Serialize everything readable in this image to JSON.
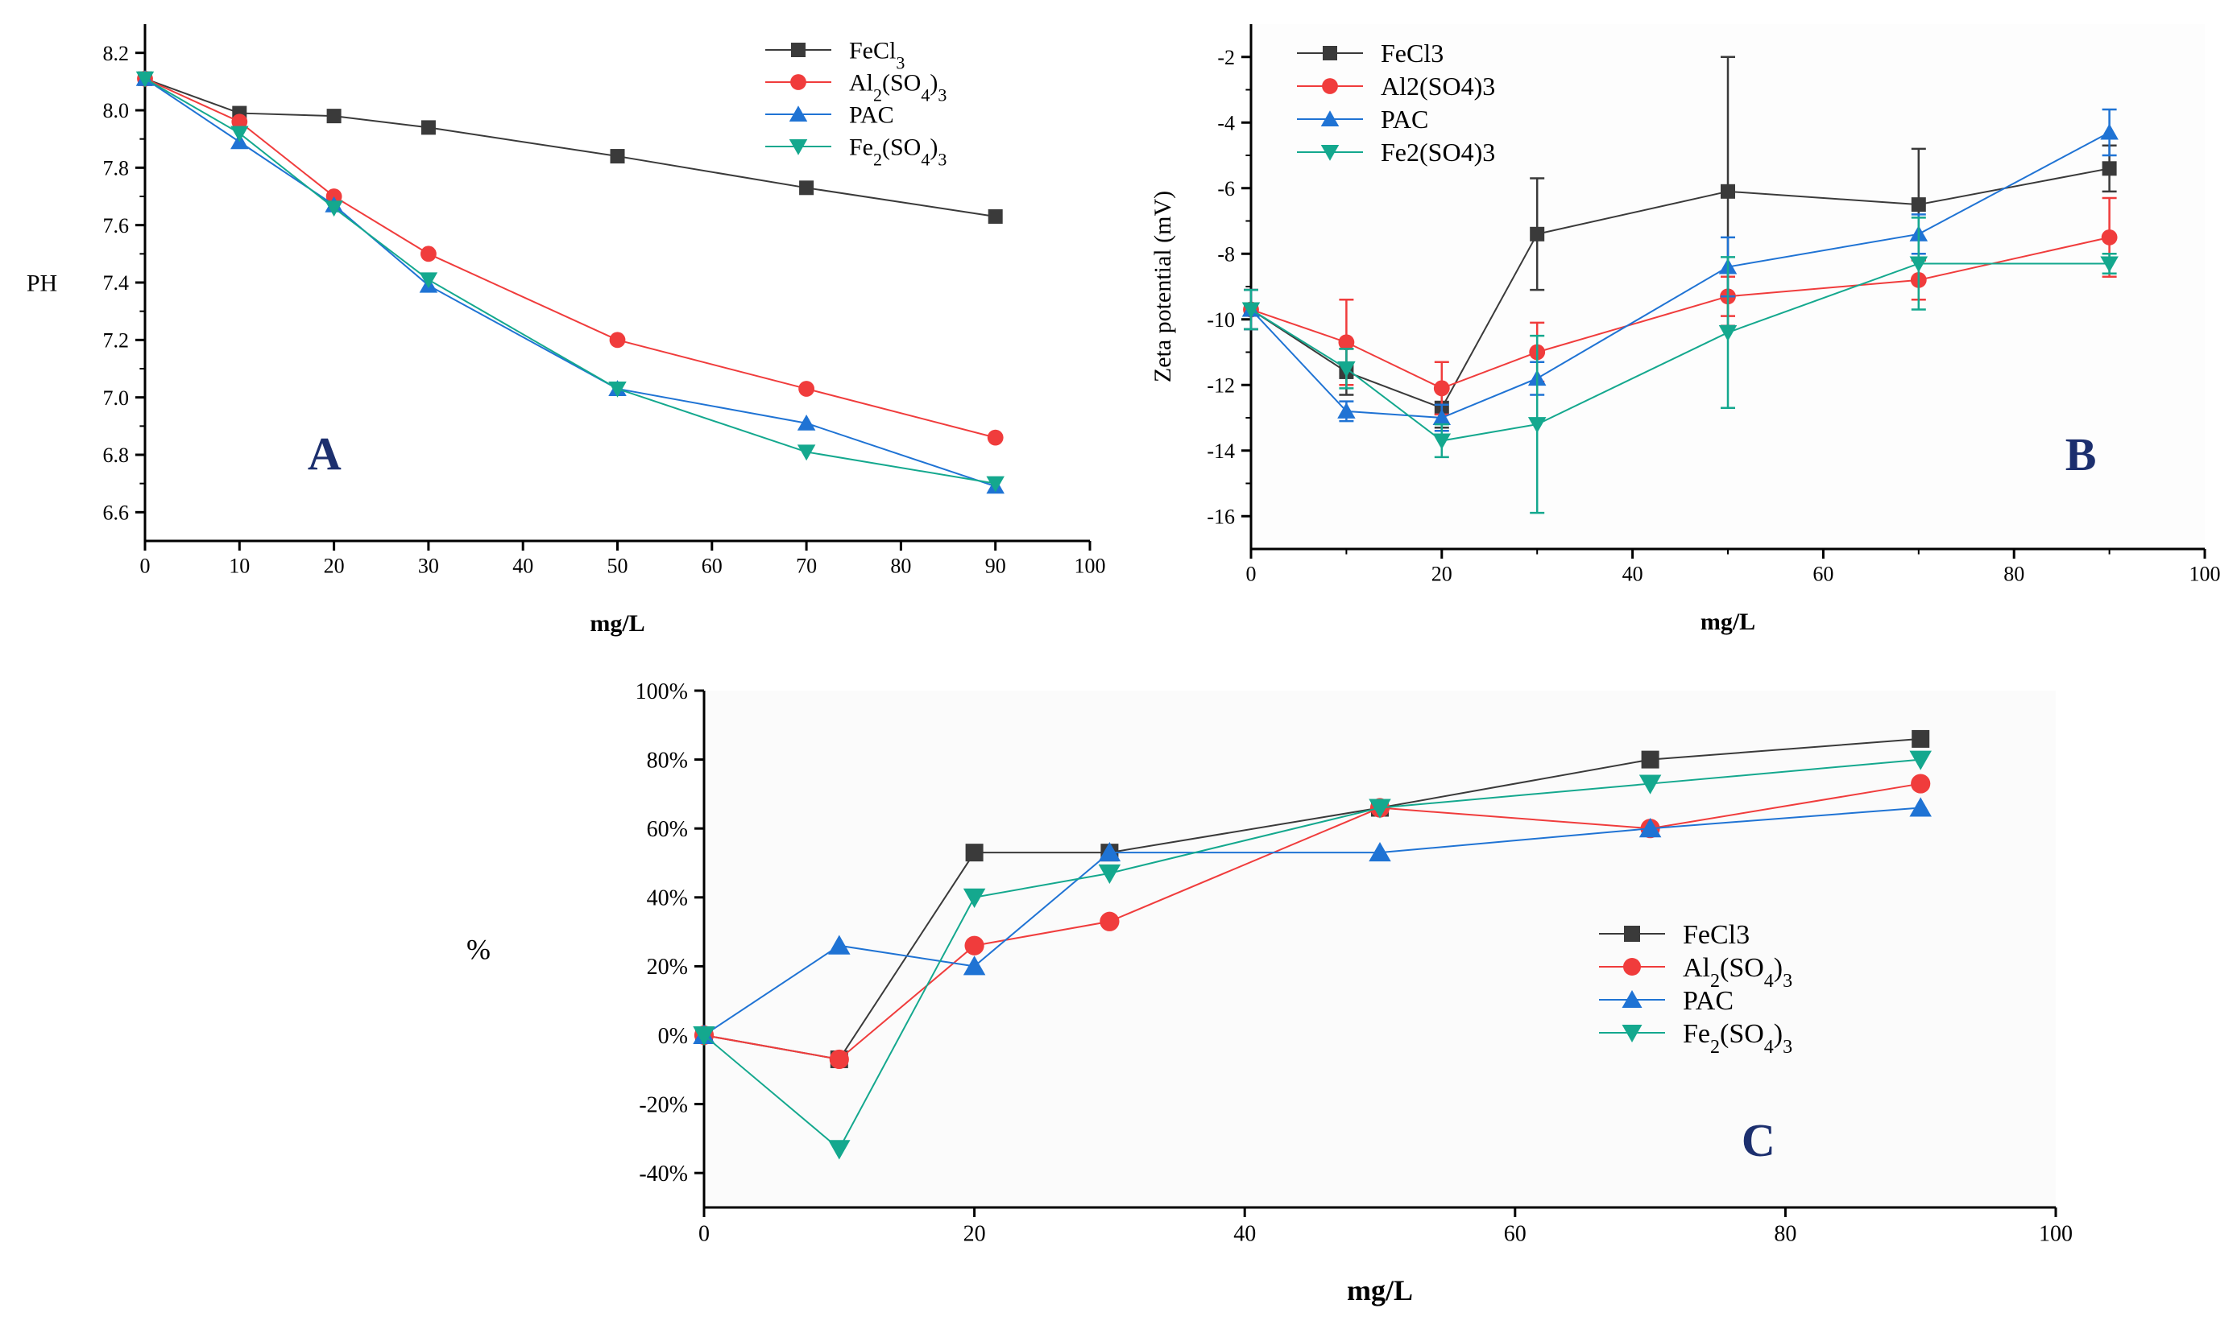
{
  "chart_data": [
    {
      "type": "line",
      "panel_label": "A",
      "xlabel": "mg/L",
      "ylabel": "PH",
      "xlim": [
        0,
        100
      ],
      "ylim": [
        6.5,
        8.3
      ],
      "xticks": [
        0,
        10,
        20,
        30,
        40,
        50,
        60,
        70,
        80,
        90,
        100
      ],
      "xtick_labels": [
        "0",
        "10",
        "20",
        "30",
        "40",
        "50",
        "60",
        "70",
        "80",
        "90",
        "100"
      ],
      "yticks": [
        6.6,
        6.8,
        7.0,
        7.2,
        7.4,
        7.6,
        7.8,
        8.0,
        8.2
      ],
      "ytick_labels": [
        "6.6",
        "6.8",
        "7.0",
        "7.2",
        "7.4",
        "7.6",
        "7.8",
        "8.0",
        "8.2"
      ],
      "legend_position": "top-right",
      "x": [
        0,
        10,
        20,
        30,
        50,
        70,
        90
      ],
      "series": [
        {
          "name": "FeCl",
          "sub": "3",
          "tail": "",
          "color": "#3a3a3a",
          "marker": "square",
          "values": [
            8.11,
            7.99,
            7.98,
            7.94,
            7.84,
            7.73,
            7.63
          ]
        },
        {
          "name": "Al",
          "sub": "2",
          "tail": "(SO",
          "sub2": "4",
          "tail2": ")",
          "sub3": "3",
          "color": "#f03c3c",
          "marker": "circle",
          "values": [
            8.11,
            7.96,
            7.7,
            7.5,
            7.2,
            7.03,
            6.86
          ]
        },
        {
          "name": "PAC",
          "sub": "",
          "tail": "",
          "color": "#1f73d4",
          "marker": "triangle-up",
          "values": [
            8.11,
            7.89,
            7.67,
            7.39,
            7.03,
            6.91,
            6.69
          ]
        },
        {
          "name": "Fe",
          "sub": "2",
          "tail": "(SO",
          "sub2": "4",
          "tail2": ")",
          "sub3": "3",
          "color": "#14a88e",
          "marker": "triangle-down",
          "values": [
            8.11,
            7.92,
            7.66,
            7.41,
            7.03,
            6.81,
            6.7
          ]
        }
      ]
    },
    {
      "type": "line",
      "panel_label": "B",
      "xlabel": "mg/L",
      "ylabel": "Zeta potential (mV)",
      "xlim": [
        0,
        100
      ],
      "ylim": [
        -17,
        -1
      ],
      "xticks": [
        0,
        20,
        40,
        60,
        80,
        100
      ],
      "xtick_labels": [
        "0",
        "20",
        "40",
        "60",
        "80",
        "100"
      ],
      "yticks": [
        -16,
        -14,
        -12,
        -10,
        -8,
        -6,
        -4,
        -2
      ],
      "ytick_labels": [
        "-16",
        "-14",
        "-12",
        "-10",
        "-8",
        "-6",
        "-4",
        "-2"
      ],
      "legend_position": "top-left",
      "x": [
        0,
        10,
        20,
        30,
        50,
        70,
        90
      ],
      "series": [
        {
          "name": "FeCl3",
          "color": "#3a3a3a",
          "marker": "square",
          "values": [
            -9.7,
            -11.6,
            -12.7,
            -7.4,
            -6.1,
            -6.5,
            -5.4
          ],
          "errors": [
            0.6,
            0.7,
            0.6,
            1.7,
            4.1,
            1.7,
            0.7
          ]
        },
        {
          "name": "Al2(SO4)3",
          "color": "#f03c3c",
          "marker": "circle",
          "values": [
            -9.7,
            -10.7,
            -12.1,
            -11.0,
            -9.3,
            -8.8,
            -7.5
          ],
          "errors": [
            0.6,
            1.3,
            0.8,
            0.9,
            0.6,
            0.6,
            1.2
          ]
        },
        {
          "name": "PAC",
          "color": "#1f73d4",
          "marker": "triangle-up",
          "values": [
            -9.7,
            -12.8,
            -13.0,
            -11.8,
            -8.4,
            -7.4,
            -4.3
          ],
          "errors": [
            0.6,
            0.3,
            0.4,
            0.5,
            0.9,
            0.6,
            0.7
          ]
        },
        {
          "name": "Fe2(SO4)3",
          "color": "#14a88e",
          "marker": "triangle-down",
          "values": [
            -9.7,
            -11.5,
            -13.7,
            -13.2,
            -10.4,
            -8.3,
            -8.3
          ],
          "errors": [
            0.6,
            0.6,
            0.5,
            2.7,
            2.3,
            1.4,
            0.3
          ]
        }
      ]
    },
    {
      "type": "line",
      "panel_label": "C",
      "xlabel": "mg/L",
      "ylabel": "%",
      "xlim": [
        0,
        100
      ],
      "ylim": [
        -50,
        100
      ],
      "xticks": [
        0,
        20,
        40,
        60,
        80,
        100
      ],
      "xtick_labels": [
        "0",
        "20",
        "40",
        "60",
        "80",
        "100"
      ],
      "yticks": [
        -40,
        -20,
        0,
        20,
        40,
        60,
        80,
        100
      ],
      "ytick_labels": [
        "-40%",
        "-20%",
        "0%",
        "20%",
        "40%",
        "60%",
        "80%",
        "100%"
      ],
      "legend_position": "center-right",
      "x": [
        0,
        10,
        20,
        30,
        50,
        70,
        90
      ],
      "series": [
        {
          "name": "FeCl3",
          "sub": "",
          "tail": "",
          "color": "#3a3a3a",
          "marker": "square",
          "values": [
            0,
            -7,
            53,
            53,
            66,
            80,
            86
          ]
        },
        {
          "name": "Al",
          "sub": "2",
          "tail": "(SO",
          "sub2": "4",
          "tail2": ")",
          "sub3": "3",
          "color": "#f03c3c",
          "marker": "circle",
          "values": [
            0,
            -7,
            26,
            33,
            66,
            60,
            73
          ]
        },
        {
          "name": "PAC",
          "sub": "",
          "tail": "",
          "color": "#1f73d4",
          "marker": "triangle-up",
          "values": [
            0,
            26,
            20,
            53,
            53,
            60,
            66
          ]
        },
        {
          "name": "Fe",
          "sub": "2",
          "tail": "(SO",
          "sub2": "4",
          "tail2": ")",
          "sub3": "3",
          "color": "#14a88e",
          "marker": "triangle-down",
          "values": [
            0,
            -33,
            40,
            47,
            66,
            73,
            80
          ]
        }
      ]
    }
  ]
}
